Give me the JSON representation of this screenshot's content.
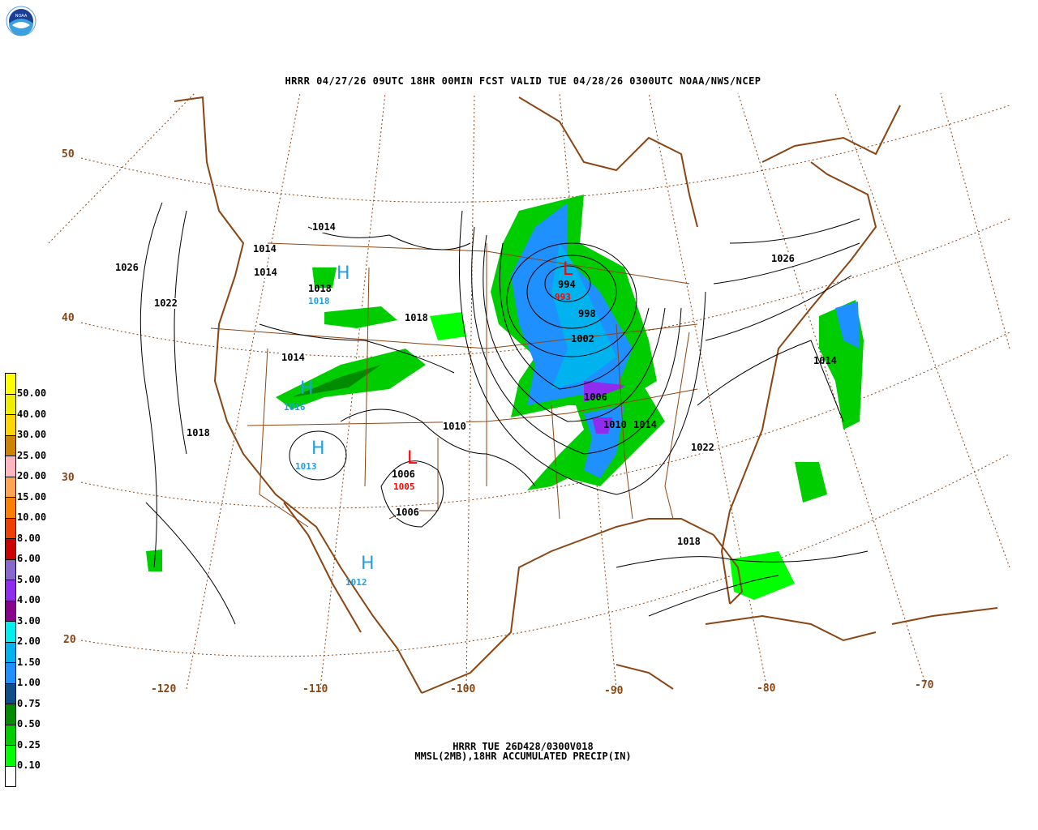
{
  "header": {
    "title": "HRRR 04/27/26 09UTC 18HR 00MIN FCST VALID TUE 04/28/26 0300UTC NOAA/NWS/NCEP"
  },
  "footer": {
    "line1": "HRRR TUE 26D428/0300V018",
    "line2": "MMSL(2MB),18HR ACCUMULATED PRECIP(IN)"
  },
  "logo": {
    "text": "NOAA"
  },
  "colors": {
    "boundary": "#8B4513",
    "isobar": "#000000",
    "high": "#1E9FE6",
    "low": "#FF0000"
  },
  "legend": {
    "units": "IN",
    "items": [
      {
        "label": "50.00",
        "color": "#FFFF00"
      },
      {
        "label": "40.00",
        "color": "#EEEE00"
      },
      {
        "label": "30.00",
        "color": "#FFD700"
      },
      {
        "label": "25.00",
        "color": "#CD8500"
      },
      {
        "label": "20.00",
        "color": "#FFB6C1"
      },
      {
        "label": "15.00",
        "color": "#FFA54F"
      },
      {
        "label": "10.00",
        "color": "#FF7F00"
      },
      {
        "label": "8.00",
        "color": "#EE4000"
      },
      {
        "label": "6.00",
        "color": "#CD0000"
      },
      {
        "label": "5.00",
        "color": "#8968CD"
      },
      {
        "label": "4.00",
        "color": "#912CEE"
      },
      {
        "label": "3.00",
        "color": "#8B008B"
      },
      {
        "label": "2.00",
        "color": "#00EEEE"
      },
      {
        "label": "1.50",
        "color": "#00B2EE"
      },
      {
        "label": "1.00",
        "color": "#1E90FF"
      },
      {
        "label": "0.75",
        "color": "#104E8B"
      },
      {
        "label": "0.50",
        "color": "#008B00"
      },
      {
        "label": "0.25",
        "color": "#00CD00"
      },
      {
        "label": "0.10",
        "color": "#00FF00"
      },
      {
        "label": "",
        "color": "#FFFFFF"
      }
    ]
  },
  "map": {
    "lat_labels": [
      "50",
      "40",
      "30",
      "20"
    ],
    "lon_labels": [
      "-120",
      "-110",
      "-100",
      "-90",
      "-80",
      "-70"
    ],
    "isobar_labels": [
      "1014",
      "1014",
      "1014",
      "1026",
      "1022",
      "1018",
      "1018",
      "1014",
      "1018",
      "1010",
      "1006",
      "1006",
      "994",
      "998",
      "1002",
      "1006",
      "1010",
      "1014",
      "1022",
      "1018",
      "1026",
      "1014"
    ],
    "highs": [
      {
        "symbol": "H",
        "value": "1018"
      },
      {
        "symbol": "H",
        "value": "1016"
      },
      {
        "symbol": "H",
        "value": "1013"
      },
      {
        "symbol": "H",
        "value": "1012"
      }
    ],
    "lows": [
      {
        "symbol": "L",
        "value": "1005"
      },
      {
        "symbol": "L",
        "value": "993"
      }
    ]
  }
}
